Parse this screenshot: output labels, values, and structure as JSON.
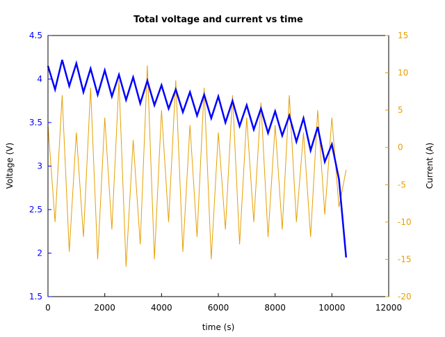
{
  "chart_data": {
    "type": "line",
    "title": "Total voltage and current vs time",
    "xlabel": "time (s)",
    "ylabel": "Voltage (V)",
    "y2label": "Current (A)",
    "xlim": [
      0,
      12000
    ],
    "ylim": [
      1.5,
      4.5
    ],
    "y2lim": [
      -20,
      15
    ],
    "xticks": [
      "0",
      "2000",
      "4000",
      "6000",
      "8000",
      "10000",
      "12000"
    ],
    "yticks": [
      "1.5",
      "2",
      "2.5",
      "3",
      "3.5",
      "4",
      "4.5"
    ],
    "y2ticks": [
      "-20",
      "-15",
      "-10",
      "-5",
      "0",
      "5",
      "10",
      "15"
    ],
    "grid": false,
    "colors": {
      "voltage": "#0000ff",
      "current": "#e69f00",
      "axis_left": "#0000ff",
      "axis_right": "#e69f00"
    },
    "x": [
      0,
      250,
      500,
      750,
      1000,
      1250,
      1500,
      1750,
      2000,
      2250,
      2500,
      2750,
      3000,
      3250,
      3500,
      3750,
      4000,
      4250,
      4500,
      4750,
      5000,
      5250,
      5500,
      5750,
      6000,
      6250,
      6500,
      6750,
      7000,
      7250,
      7500,
      7750,
      8000,
      8250,
      8500,
      8750,
      9000,
      9250,
      9500,
      9750,
      10000,
      10250,
      10500
    ],
    "series": [
      {
        "axis": "left",
        "values": [
          4.15,
          3.88,
          4.22,
          3.92,
          4.18,
          3.85,
          4.12,
          3.82,
          4.1,
          3.8,
          4.05,
          3.76,
          4.02,
          3.72,
          3.98,
          3.7,
          3.93,
          3.66,
          3.88,
          3.62,
          3.85,
          3.58,
          3.82,
          3.55,
          3.8,
          3.5,
          3.75,
          3.46,
          3.7,
          3.42,
          3.66,
          3.38,
          3.63,
          3.35,
          3.58,
          3.28,
          3.55,
          3.18,
          3.45,
          3.05,
          3.25,
          2.85,
          1.95
        ]
      },
      {
        "axis": "right",
        "values": [
          3,
          -10,
          7,
          -14,
          2,
          -12,
          8,
          -15,
          4,
          -11,
          9,
          -16,
          1,
          -13,
          11,
          -15,
          5,
          -10,
          9,
          -14,
          3,
          -12,
          8,
          -15,
          2,
          -11,
          7,
          -13,
          4,
          -10,
          6,
          -12,
          3,
          -11,
          7,
          -10,
          2,
          -12,
          5,
          -9,
          4,
          -8,
          -3
        ]
      }
    ]
  }
}
